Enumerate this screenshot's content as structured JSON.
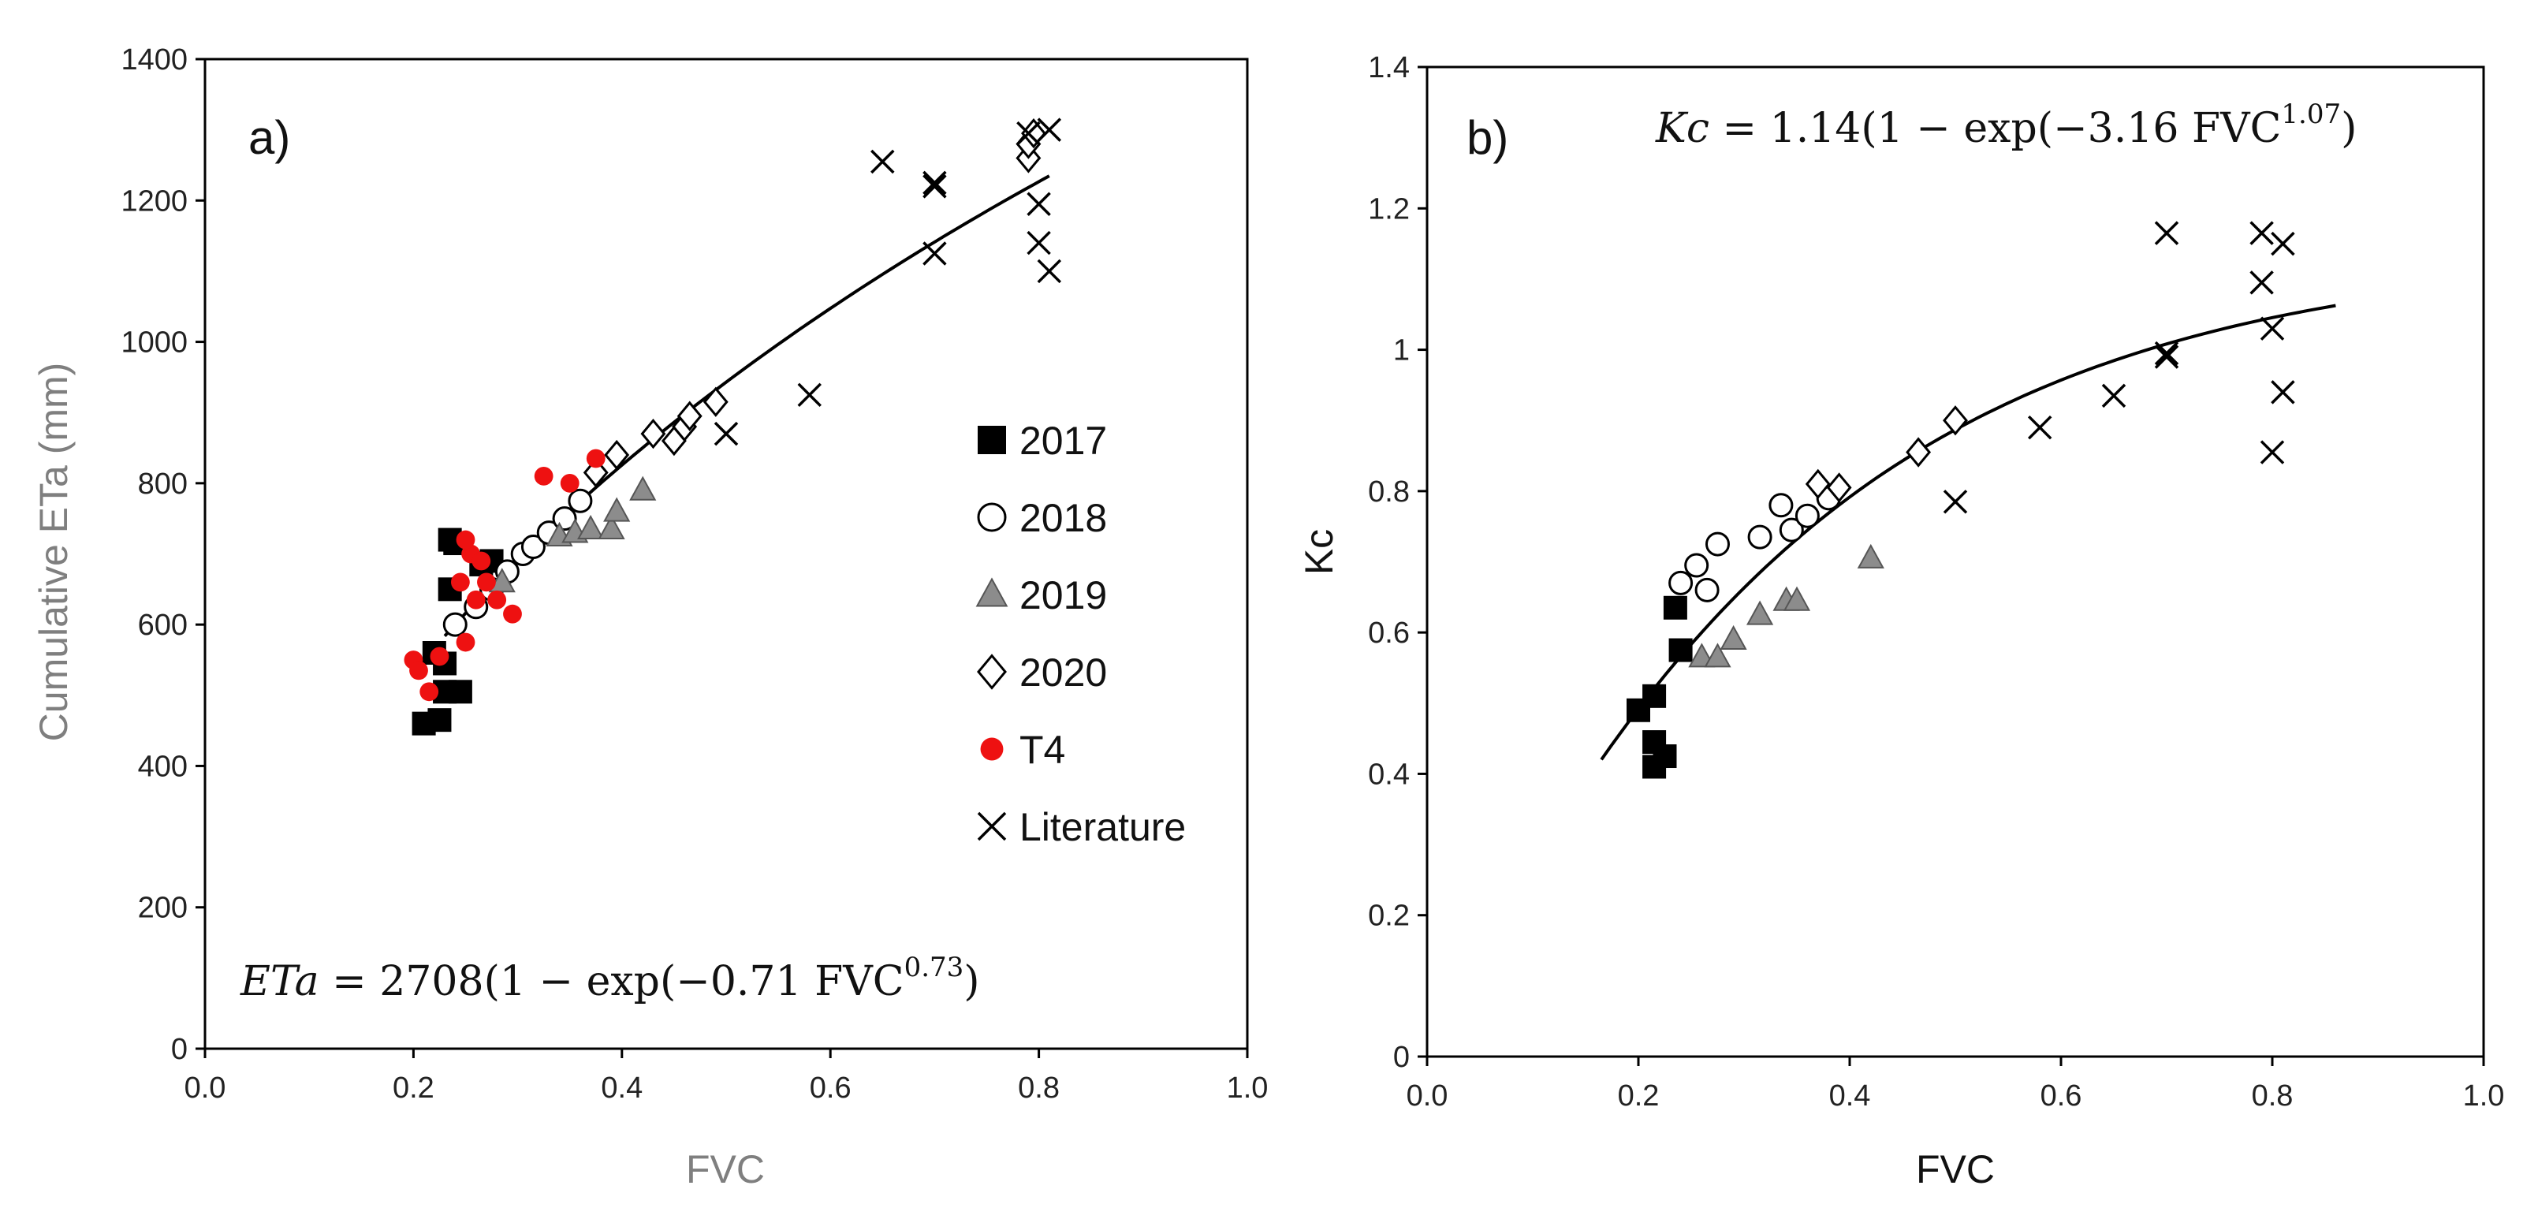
{
  "chart_data": [
    {
      "type": "scatter",
      "panel_label": "a)",
      "xlabel": "FVC",
      "ylabel": "Cumulative ETa (mm)",
      "xlim": [
        0.0,
        1.0
      ],
      "ylim": [
        0,
        1400
      ],
      "xticks": [
        "0.0",
        "0.2",
        "0.4",
        "0.6",
        "0.8",
        "1.0"
      ],
      "yticks": [
        "0",
        "200",
        "400",
        "600",
        "800",
        "1000",
        "1200",
        "1400"
      ],
      "equation": {
        "lhs": "ETa",
        "body": " = 2708(1 − exp(−0.71 FVC",
        "sup": "0.73",
        "tail": ")"
      },
      "fit": {
        "a": 2708,
        "b": 0.71,
        "c": 0.73,
        "x_range": [
          0.23,
          0.81
        ]
      },
      "legend": [
        {
          "name": "2017",
          "marker": "square",
          "color": "#000000"
        },
        {
          "name": "2018",
          "marker": "circle-open",
          "color": "#000000"
        },
        {
          "name": "2019",
          "marker": "triangle",
          "color": "#8c8c8c"
        },
        {
          "name": "2020",
          "marker": "diamond-open",
          "color": "#000000"
        },
        {
          "name": "T4",
          "marker": "circle",
          "color": "#ee1111"
        },
        {
          "name": "Literature",
          "marker": "x",
          "color": "#000000"
        }
      ],
      "series": [
        {
          "name": "2017",
          "points": [
            [
              0.21,
              460
            ],
            [
              0.225,
              465
            ],
            [
              0.23,
              505
            ],
            [
              0.245,
              505
            ],
            [
              0.22,
              560
            ],
            [
              0.23,
              545
            ],
            [
              0.235,
              650
            ],
            [
              0.24,
              715
            ],
            [
              0.235,
              720
            ],
            [
              0.275,
              690
            ],
            [
              0.265,
              685
            ]
          ]
        },
        {
          "name": "2018",
          "points": [
            [
              0.24,
              600
            ],
            [
              0.26,
              625
            ],
            [
              0.275,
              650
            ],
            [
              0.29,
              675
            ],
            [
              0.305,
              700
            ],
            [
              0.315,
              710
            ],
            [
              0.33,
              730
            ],
            [
              0.345,
              750
            ],
            [
              0.36,
              775
            ]
          ]
        },
        {
          "name": "2019",
          "points": [
            [
              0.285,
              660
            ],
            [
              0.34,
              725
            ],
            [
              0.355,
              730
            ],
            [
              0.37,
              735
            ],
            [
              0.39,
              735
            ],
            [
              0.395,
              760
            ],
            [
              0.42,
              790
            ]
          ]
        },
        {
          "name": "2020",
          "points": [
            [
              0.375,
              815
            ],
            [
              0.395,
              840
            ],
            [
              0.43,
              870
            ],
            [
              0.45,
              860
            ],
            [
              0.46,
              880
            ],
            [
              0.465,
              895
            ],
            [
              0.49,
              915
            ],
            [
              0.79,
              1260
            ],
            [
              0.79,
              1280
            ],
            [
              0.795,
              1295
            ]
          ]
        },
        {
          "name": "T4",
          "points": [
            [
              0.2,
              550
            ],
            [
              0.205,
              535
            ],
            [
              0.215,
              505
            ],
            [
              0.225,
              555
            ],
            [
              0.25,
              575
            ],
            [
              0.245,
              660
            ],
            [
              0.255,
              700
            ],
            [
              0.265,
              690
            ],
            [
              0.27,
              660
            ],
            [
              0.26,
              635
            ],
            [
              0.28,
              635
            ],
            [
              0.295,
              615
            ],
            [
              0.25,
              720
            ],
            [
              0.325,
              810
            ],
            [
              0.35,
              800
            ],
            [
              0.375,
              835
            ]
          ]
        },
        {
          "name": "Literature",
          "points": [
            [
              0.5,
              870
            ],
            [
              0.58,
              925
            ],
            [
              0.65,
              1255
            ],
            [
              0.7,
              1220
            ],
            [
              0.7,
              1225
            ],
            [
              0.7,
              1125
            ],
            [
              0.8,
              1195
            ],
            [
              0.8,
              1140
            ],
            [
              0.81,
              1100
            ],
            [
              0.81,
              1300
            ],
            [
              0.79,
              1295
            ]
          ]
        }
      ]
    },
    {
      "type": "scatter",
      "panel_label": "b)",
      "xlabel": "FVC",
      "ylabel": "Kc",
      "xlim": [
        0.0,
        1.0
      ],
      "ylim": [
        0,
        1.4
      ],
      "xticks": [
        "0.0",
        "0.2",
        "0.4",
        "0.6",
        "0.8",
        "1.0"
      ],
      "yticks": [
        "0",
        "0.2",
        "0.4",
        "0.6",
        "0.8",
        "1",
        "1.2",
        "1.4"
      ],
      "equation": {
        "lhs": "Kc",
        "body": " = 1.14(1 − exp(−3.16 FVC",
        "sup": "1.07",
        "tail": ")"
      },
      "fit": {
        "a": 1.14,
        "b": 3.16,
        "c": 1.07,
        "x_range": [
          0.165,
          0.86
        ]
      },
      "series": [
        {
          "name": "2017",
          "points": [
            [
              0.2,
              0.49
            ],
            [
              0.215,
              0.51
            ],
            [
              0.215,
              0.445
            ],
            [
              0.225,
              0.425
            ],
            [
              0.215,
              0.41
            ],
            [
              0.235,
              0.635
            ],
            [
              0.24,
              0.575
            ]
          ]
        },
        {
          "name": "2018",
          "points": [
            [
              0.24,
              0.67
            ],
            [
              0.255,
              0.695
            ],
            [
              0.265,
              0.66
            ],
            [
              0.275,
              0.725
            ],
            [
              0.315,
              0.735
            ],
            [
              0.335,
              0.78
            ],
            [
              0.345,
              0.745
            ],
            [
              0.36,
              0.765
            ],
            [
              0.38,
              0.79
            ]
          ]
        },
        {
          "name": "2019",
          "points": [
            [
              0.26,
              0.565
            ],
            [
              0.275,
              0.565
            ],
            [
              0.29,
              0.59
            ],
            [
              0.315,
              0.625
            ],
            [
              0.34,
              0.645
            ],
            [
              0.35,
              0.645
            ],
            [
              0.42,
              0.705
            ]
          ]
        },
        {
          "name": "2020",
          "points": [
            [
              0.37,
              0.81
            ],
            [
              0.39,
              0.805
            ],
            [
              0.465,
              0.855
            ],
            [
              0.5,
              0.9
            ]
          ]
        },
        {
          "name": "Literature",
          "points": [
            [
              0.5,
              0.785
            ],
            [
              0.58,
              0.89
            ],
            [
              0.65,
              0.935
            ],
            [
              0.7,
              0.99
            ],
            [
              0.7,
              0.995
            ],
            [
              0.7,
              1.165
            ],
            [
              0.79,
              1.165
            ],
            [
              0.79,
              1.095
            ],
            [
              0.8,
              1.03
            ],
            [
              0.81,
              1.15
            ],
            [
              0.81,
              0.94
            ],
            [
              0.8,
              0.855
            ]
          ]
        }
      ]
    }
  ]
}
